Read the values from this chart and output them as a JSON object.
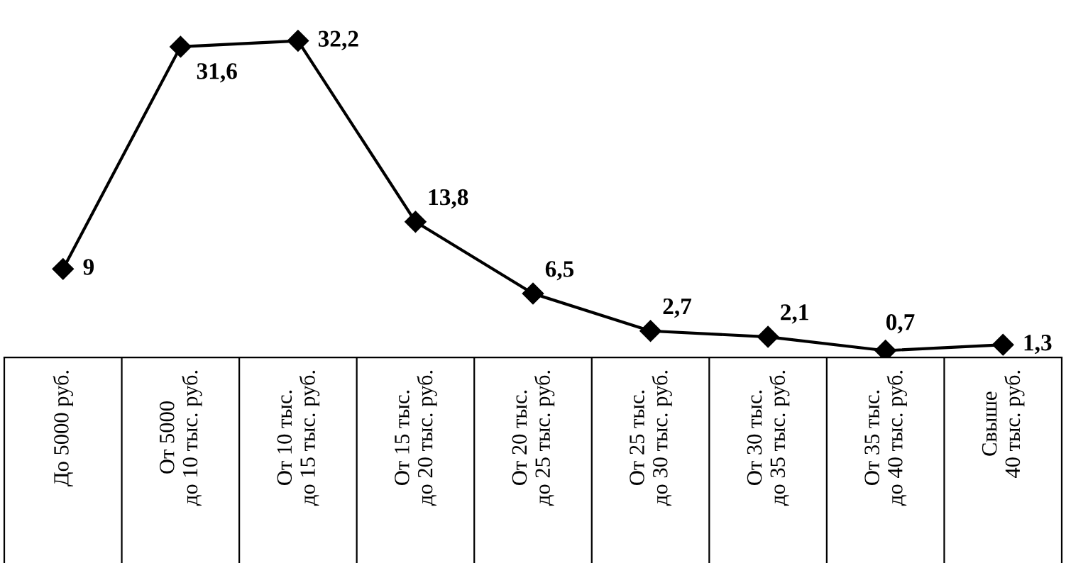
{
  "chart_data": {
    "type": "line",
    "categories": [
      "До 5000 руб.",
      "От 5000\nдо 10 тыс. руб.",
      "От 10 тыс.\nдо 15 тыс. руб.",
      "От 15 тыс.\nдо 20 тыс. руб.",
      "От 20 тыс.\nдо 25 тыс. руб.",
      "От 25 тыс.\nдо 30 тыс. руб.",
      "От 30 тыс.\nдо 35 тыс. руб.",
      "От 35 тыс.\nдо 40 тыс. руб.",
      "Свыше\n40 тыс. руб."
    ],
    "series": [
      {
        "color": "#000000",
        "values": [
          9,
          31.6,
          32.2,
          13.8,
          6.5,
          2.7,
          2.1,
          0.7,
          1.3
        ],
        "value_labels": [
          "9",
          "31,6",
          "32,2",
          "13,8",
          "6,5",
          "2,7",
          "2,1",
          "0,7",
          "1,3"
        ]
      }
    ],
    "marker": "diamond",
    "line_style": "solid",
    "grid": false,
    "legend": false
  }
}
